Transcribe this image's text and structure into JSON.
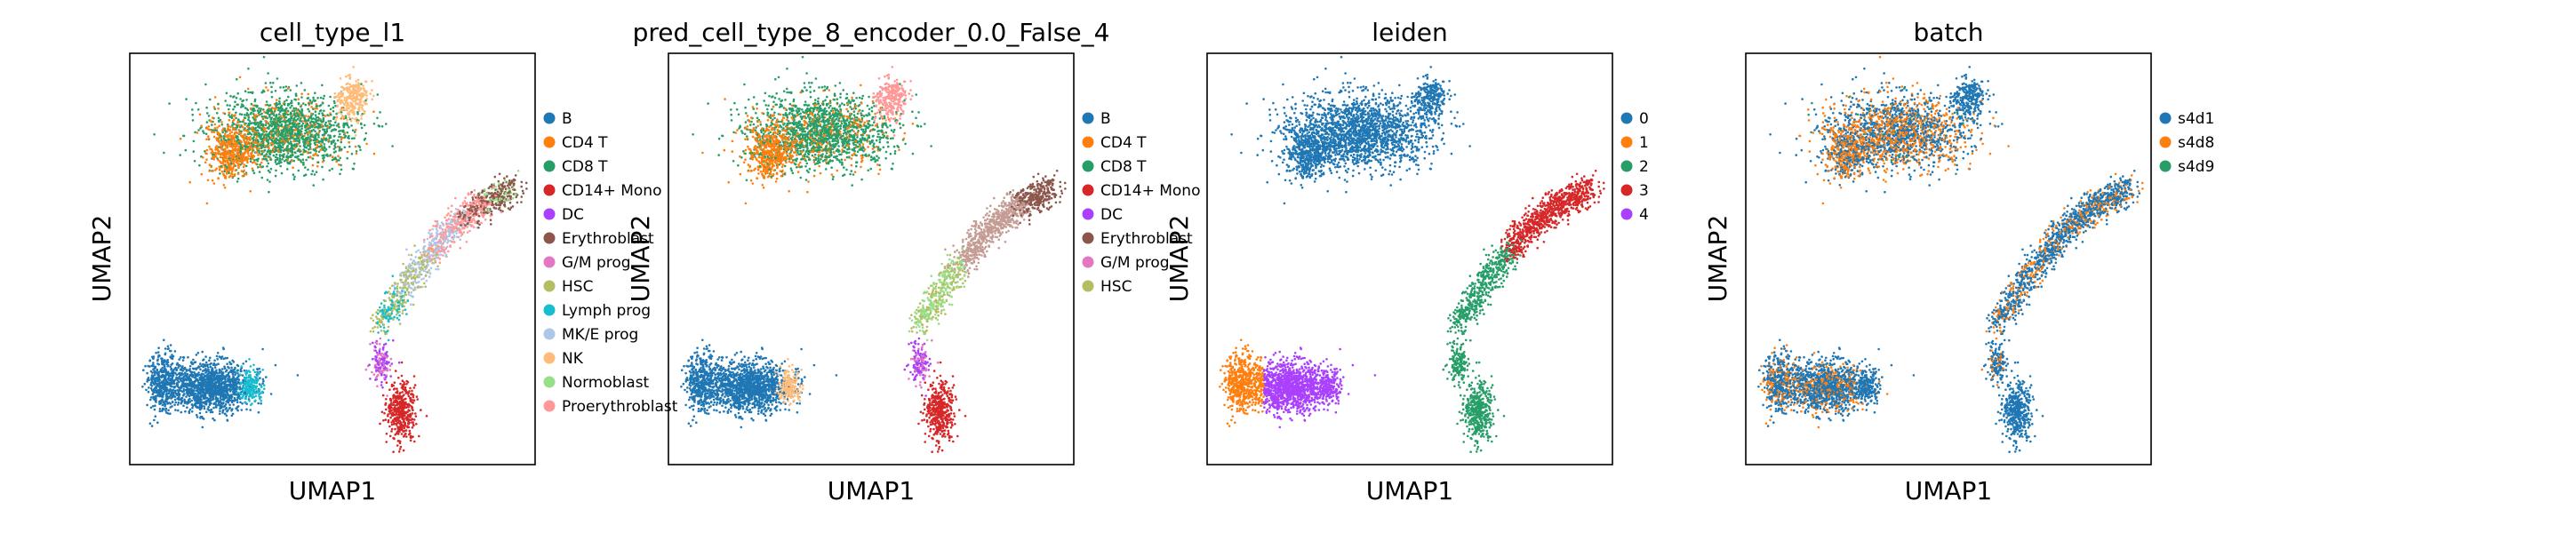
{
  "chart_data": [
    {
      "type": "scatter",
      "title": "cell_type_l1",
      "xlabel": "UMAP1",
      "ylabel": "UMAP2",
      "grid": false,
      "legend_position": "right",
      "legend": [
        "B",
        "CD4 T",
        "CD8 T",
        "CD14+ Mono",
        "DC",
        "Erythroblast",
        "G/M prog",
        "HSC",
        "Lymph prog",
        "MK/E prog",
        "NK",
        "Normoblast",
        "Proerythroblast"
      ],
      "colors": [
        "#1f77b4",
        "#ff7f0e",
        "#279e68",
        "#d62728",
        "#aa40fc",
        "#8c564b",
        "#e377c2",
        "#b5bd61",
        "#17becf",
        "#aec7e8",
        "#ffbb78",
        "#98df8a",
        "#ff9896"
      ]
    },
    {
      "type": "scatter",
      "title": "pred_cell_type_8_encoder_0.0_False_4",
      "xlabel": "UMAP1",
      "ylabel": "UMAP2",
      "grid": false,
      "legend_position": "right",
      "legend": [
        "B",
        "CD4 T",
        "CD8 T",
        "CD14+ Mono",
        "DC",
        "Erythroblast",
        "G/M prog",
        "HSC"
      ],
      "colors": [
        "#1f77b4",
        "#ff7f0e",
        "#279e68",
        "#d62728",
        "#aa40fc",
        "#8c564b",
        "#e377c2",
        "#b5bd61"
      ]
    },
    {
      "type": "scatter",
      "title": "leiden",
      "xlabel": "UMAP1",
      "ylabel": "UMAP2",
      "grid": false,
      "legend_position": "right",
      "legend": [
        "0",
        "1",
        "2",
        "3",
        "4"
      ],
      "colors": [
        "#1f77b4",
        "#ff7f0e",
        "#279e68",
        "#d62728",
        "#aa40fc"
      ]
    },
    {
      "type": "scatter",
      "title": "batch",
      "xlabel": "UMAP1",
      "ylabel": "UMAP2",
      "grid": false,
      "legend_position": "right",
      "legend": [
        "s4d1",
        "s4d8",
        "s4d9"
      ],
      "colors": [
        "#1f77b4",
        "#ff7f0e",
        "#279e68"
      ]
    }
  ]
}
